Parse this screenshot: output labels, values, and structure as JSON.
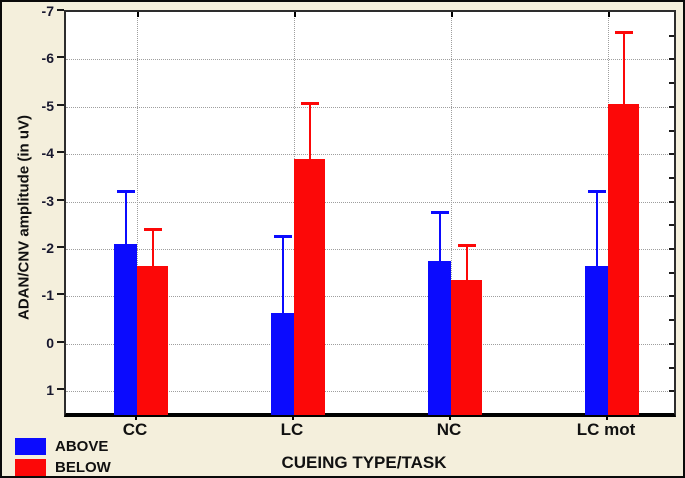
{
  "figure": {
    "background_color": "#f4efdc",
    "plot_background_color": "#ffffff",
    "outer_border_color": "#0a0a0a",
    "frame_color": "#2d2d2d",
    "grid_color": "#9e9e9e"
  },
  "chart_data": {
    "type": "bar",
    "title": "",
    "xlabel": "CUEING TYPE/TASK",
    "ylabel": "ADAN/CNV amplitude (in uV)",
    "categories": [
      "CC",
      "LC",
      "NC",
      "LC mot"
    ],
    "series": [
      {
        "name": "ABOVE",
        "color": "#0b0bfe",
        "values": [
          -2.1,
          -0.65,
          -1.75,
          -1.65
        ],
        "error_upper": [
          1.15,
          1.65,
          1.05,
          1.6
        ]
      },
      {
        "name": "BELOW",
        "color": "#fc0808",
        "values": [
          -1.65,
          -3.9,
          -1.35,
          -5.05
        ],
        "error_upper": [
          0.8,
          1.2,
          0.75,
          1.55
        ]
      }
    ],
    "y_axis": {
      "ticks": [
        -7,
        -6,
        -5,
        -4,
        -3,
        -2,
        -1,
        0,
        1
      ],
      "inverted": true,
      "top_value": -7,
      "bottom_value": 1.5,
      "minor_tick_step": 0.5
    },
    "grid": "dotted horizontal at integers, dotted vertical at category centers",
    "legend_position": "bottom-left"
  }
}
